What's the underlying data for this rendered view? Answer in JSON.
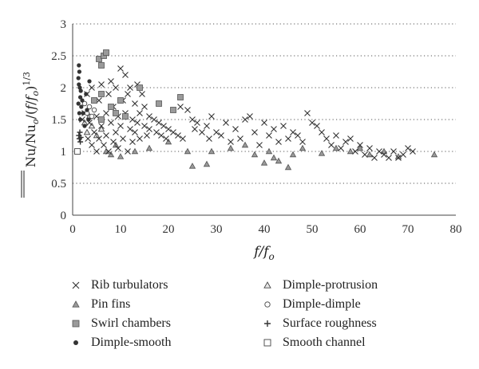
{
  "chart_data": {
    "type": "scatter",
    "title": "",
    "xlim": [
      0,
      80
    ],
    "ylim": [
      0,
      3
    ],
    "xticks": [
      "0",
      "10",
      "20",
      "30",
      "40",
      "50",
      "60",
      "70",
      "80"
    ],
    "yticks": [
      "0",
      "0.5",
      "1",
      "1.5",
      "2",
      "2.5",
      "3"
    ],
    "grid": "horizontal dotted",
    "legend_position": "bottom",
    "colors": {
      "marker_dark": "#333333",
      "marker_gray": "#9a9a9a",
      "marker_light": "#e6e6e6",
      "grid": "#555555"
    },
    "series": [
      {
        "name": "Rib turbulators",
        "marker": "x",
        "points": [
          [
            2,
            1.5
          ],
          [
            2.5,
            1.6
          ],
          [
            3,
            1.9
          ],
          [
            3.2,
            1.2
          ],
          [
            3.5,
            1.45
          ],
          [
            4,
            1.1
          ],
          [
            4,
            2.0
          ],
          [
            4.5,
            1.3
          ],
          [
            5,
            1.55
          ],
          [
            5,
            1.0
          ],
          [
            5.5,
            1.8
          ],
          [
            5.5,
            1.2
          ],
          [
            6,
            1.4
          ],
          [
            6,
            2.05
          ],
          [
            6.5,
            1.1
          ],
          [
            7,
            1.6
          ],
          [
            7,
            1.25
          ],
          [
            7.5,
            1.9
          ],
          [
            7.5,
            1.0
          ],
          [
            8,
            1.45
          ],
          [
            8,
            2.1
          ],
          [
            8.5,
            1.15
          ],
          [
            8.5,
            1.7
          ],
          [
            9,
            1.3
          ],
          [
            9,
            2.0
          ],
          [
            9.5,
            1.05
          ],
          [
            9.5,
            1.55
          ],
          [
            10,
            2.3
          ],
          [
            10,
            1.4
          ],
          [
            10.5,
            1.8
          ],
          [
            10.5,
            1.2
          ],
          [
            11,
            2.2
          ],
          [
            11,
            1.6
          ],
          [
            11.5,
            1.0
          ],
          [
            11.5,
            1.9
          ],
          [
            12,
            1.35
          ],
          [
            12,
            2.0
          ],
          [
            12.5,
            1.5
          ],
          [
            12.5,
            1.15
          ],
          [
            13,
            1.75
          ],
          [
            13,
            1.3
          ],
          [
            13.5,
            2.05
          ],
          [
            13.5,
            1.45
          ],
          [
            14,
            1.6
          ],
          [
            14,
            1.2
          ],
          [
            14.5,
            1.9
          ],
          [
            15,
            1.4
          ],
          [
            15,
            1.7
          ],
          [
            15.5,
            1.25
          ],
          [
            16,
            1.55
          ],
          [
            16,
            1.35
          ],
          [
            17,
            1.5
          ],
          [
            17.5,
            1.3
          ],
          [
            18,
            1.45
          ],
          [
            18.5,
            1.25
          ],
          [
            19,
            1.4
          ],
          [
            19.5,
            1.2
          ],
          [
            20,
            1.35
          ],
          [
            21,
            1.3
          ],
          [
            22,
            1.25
          ],
          [
            22.5,
            1.7
          ],
          [
            23,
            1.2
          ],
          [
            24,
            1.65
          ],
          [
            25,
            1.5
          ],
          [
            25.5,
            1.35
          ],
          [
            26,
            1.45
          ],
          [
            27,
            1.3
          ],
          [
            28,
            1.4
          ],
          [
            28.5,
            1.2
          ],
          [
            29,
            1.55
          ],
          [
            30,
            1.3
          ],
          [
            31,
            1.25
          ],
          [
            32,
            1.45
          ],
          [
            33,
            1.15
          ],
          [
            34,
            1.35
          ],
          [
            35,
            1.2
          ],
          [
            36,
            1.5
          ],
          [
            37,
            1.55
          ],
          [
            38,
            1.3
          ],
          [
            39,
            1.1
          ],
          [
            40,
            1.45
          ],
          [
            41,
            1.25
          ],
          [
            42,
            1.35
          ],
          [
            43,
            1.15
          ],
          [
            44,
            1.4
          ],
          [
            45,
            1.2
          ],
          [
            46,
            1.3
          ],
          [
            47,
            1.25
          ],
          [
            48,
            1.15
          ],
          [
            49,
            1.6
          ],
          [
            50,
            1.45
          ],
          [
            51,
            1.4
          ],
          [
            52,
            1.3
          ],
          [
            53,
            1.2
          ],
          [
            54,
            1.1
          ],
          [
            55,
            1.25
          ],
          [
            56,
            1.05
          ],
          [
            57,
            1.15
          ],
          [
            58,
            1.2
          ],
          [
            59,
            1.0
          ],
          [
            60,
            1.1
          ],
          [
            61,
            0.95
          ],
          [
            62,
            1.05
          ],
          [
            63,
            0.9
          ],
          [
            64,
            1.0
          ],
          [
            65,
            0.95
          ],
          [
            66,
            0.9
          ],
          [
            67,
            1.0
          ],
          [
            68,
            0.9
          ],
          [
            69,
            0.95
          ],
          [
            70,
            1.05
          ],
          [
            71,
            1.0
          ]
        ]
      },
      {
        "name": "Pin fins",
        "marker": "filled-triangle",
        "points": [
          [
            7,
            1.0
          ],
          [
            8,
            0.95
          ],
          [
            9,
            1.1
          ],
          [
            10,
            0.92
          ],
          [
            13,
            1.0
          ],
          [
            16,
            1.05
          ],
          [
            20,
            1.15
          ],
          [
            24,
            1.0
          ],
          [
            25,
            0.77
          ],
          [
            28,
            0.8
          ],
          [
            29,
            1.0
          ],
          [
            33,
            1.05
          ],
          [
            36,
            1.1
          ],
          [
            38,
            0.95
          ],
          [
            40,
            0.82
          ],
          [
            41,
            1.0
          ],
          [
            42,
            0.9
          ],
          [
            43,
            0.85
          ],
          [
            45,
            0.75
          ],
          [
            46,
            0.95
          ],
          [
            48,
            1.05
          ],
          [
            52,
            0.97
          ],
          [
            55,
            1.05
          ],
          [
            58,
            1.0
          ],
          [
            60,
            1.05
          ],
          [
            62,
            0.95
          ],
          [
            65,
            1.0
          ],
          [
            68,
            0.92
          ],
          [
            75.5,
            0.95
          ]
        ]
      },
      {
        "name": "Swirl chambers",
        "marker": "filled-square",
        "points": [
          [
            5.5,
            2.45
          ],
          [
            6,
            2.35
          ],
          [
            6.5,
            2.5
          ],
          [
            7,
            2.55
          ],
          [
            4.5,
            1.8
          ],
          [
            6,
            1.9
          ],
          [
            8,
            1.7
          ],
          [
            10,
            1.8
          ],
          [
            14,
            2.0
          ],
          [
            18,
            1.75
          ],
          [
            21,
            1.65
          ],
          [
            22.5,
            1.85
          ],
          [
            6,
            1.5
          ],
          [
            9,
            1.6
          ],
          [
            11,
            1.55
          ]
        ]
      },
      {
        "name": "Dimple-smooth",
        "marker": "filled-circle",
        "points": [
          [
            1.2,
            2.15
          ],
          [
            1.3,
            2.35
          ],
          [
            1.4,
            2.25
          ],
          [
            1.5,
            2.0
          ],
          [
            1.6,
            1.85
          ],
          [
            1.7,
            1.95
          ],
          [
            1.8,
            1.7
          ],
          [
            1.2,
            1.75
          ],
          [
            1.4,
            1.6
          ],
          [
            1.6,
            1.5
          ],
          [
            2,
            1.8
          ],
          [
            2.2,
            1.6
          ],
          [
            2.5,
            1.4
          ],
          [
            3,
            1.65
          ],
          [
            3.3,
            1.5
          ],
          [
            2.8,
            1.9
          ],
          [
            1.3,
            2.05
          ],
          [
            3.5,
            2.1
          ]
        ]
      },
      {
        "name": "Dimple-protrusion",
        "marker": "open-triangle",
        "points": [
          [
            2.5,
            1.45
          ],
          [
            3,
            1.3
          ],
          [
            3.5,
            1.55
          ],
          [
            4,
            1.4
          ],
          [
            5,
            1.25
          ],
          [
            6,
            1.35
          ]
        ]
      },
      {
        "name": "Dimple-dimple",
        "marker": "open-circle",
        "points": [
          [
            2.5,
            1.75
          ],
          [
            3,
            1.6
          ],
          [
            3.5,
            1.7
          ],
          [
            4,
            1.55
          ],
          [
            4.5,
            1.65
          ]
        ]
      },
      {
        "name": "Surface roughness",
        "marker": "plus",
        "points": [
          [
            1.3,
            1.25
          ],
          [
            1.4,
            1.2
          ],
          [
            1.5,
            1.3
          ],
          [
            1.6,
            1.15
          ],
          [
            1.7,
            1.22
          ]
        ]
      },
      {
        "name": "Smooth channel",
        "marker": "open-square",
        "points": [
          [
            1,
            1.0
          ]
        ]
      }
    ]
  }
}
